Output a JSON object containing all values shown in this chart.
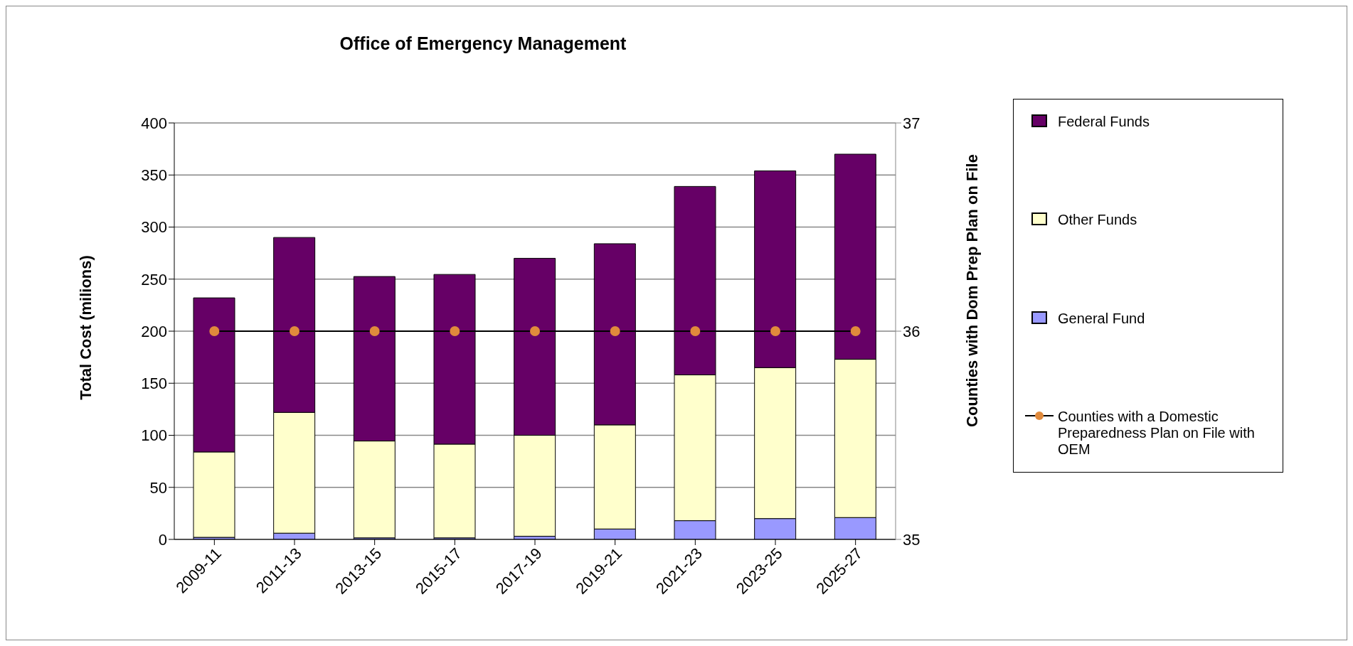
{
  "chart_data": {
    "type": "bar",
    "title": "Office of Emergency Management",
    "ylabel": "Total Cost (milions)",
    "y2label": "Counties with Dom Prep Plan on File",
    "categories": [
      "2009-11",
      "2011-13",
      "2013-15",
      "2015-17",
      "2017-19",
      "2019-21",
      "2021-23",
      "2023-25",
      "2025-27"
    ],
    "stacked": true,
    "grid": "y",
    "legend": "right",
    "ylim": [
      0,
      400
    ],
    "yticks": [
      0,
      50,
      100,
      150,
      200,
      250,
      300,
      350,
      400
    ],
    "y2lim": [
      35,
      37
    ],
    "y2ticks": [
      35,
      36,
      37
    ],
    "series": [
      {
        "name": "General Fund",
        "color": "#9999ff",
        "values": [
          2,
          6,
          1.5,
          1.5,
          3,
          10,
          18,
          20,
          21
        ]
      },
      {
        "name": "Other Funds",
        "color": "#ffffcc",
        "values": [
          82,
          116,
          93,
          90,
          97,
          100,
          140,
          145,
          152
        ]
      },
      {
        "name": "Federal Funds",
        "color": "#660066",
        "values": [
          148,
          168,
          158,
          163,
          170,
          174,
          181,
          189,
          197
        ]
      },
      {
        "name": "Counties with a Domestic Preparedness Plan on File with OEM",
        "type": "line",
        "axis": "y2",
        "color": "#e08a3c",
        "marker": "circle",
        "line_style": "solid",
        "values": [
          36,
          36,
          36,
          36,
          36,
          36,
          36,
          36,
          36
        ]
      }
    ]
  }
}
